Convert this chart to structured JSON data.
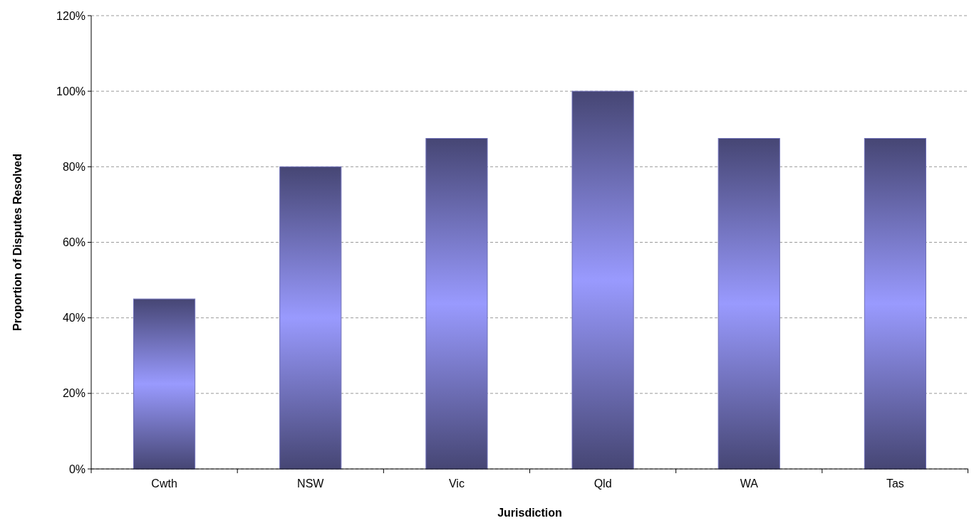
{
  "chart_data": {
    "type": "bar",
    "xlabel": "Jurisdiction",
    "ylabel": "Proportion of Disputes Resolved",
    "categories": [
      "Cwth",
      "NSW",
      "Vic",
      "Qld",
      "WA",
      "Tas"
    ],
    "values": [
      45,
      80,
      87.5,
      100,
      87.5,
      87.5
    ],
    "color": "#6f70b8",
    "ylim": [
      0,
      120
    ],
    "yticks": [
      {
        "value": 0,
        "label": "0%"
      },
      {
        "value": 20,
        "label": "20%"
      },
      {
        "value": 40,
        "label": "40%"
      },
      {
        "value": 60,
        "label": "60%"
      },
      {
        "value": 80,
        "label": "80%"
      },
      {
        "value": 100,
        "label": "100%"
      },
      {
        "value": 120,
        "label": "120%"
      }
    ],
    "grid": "y"
  }
}
